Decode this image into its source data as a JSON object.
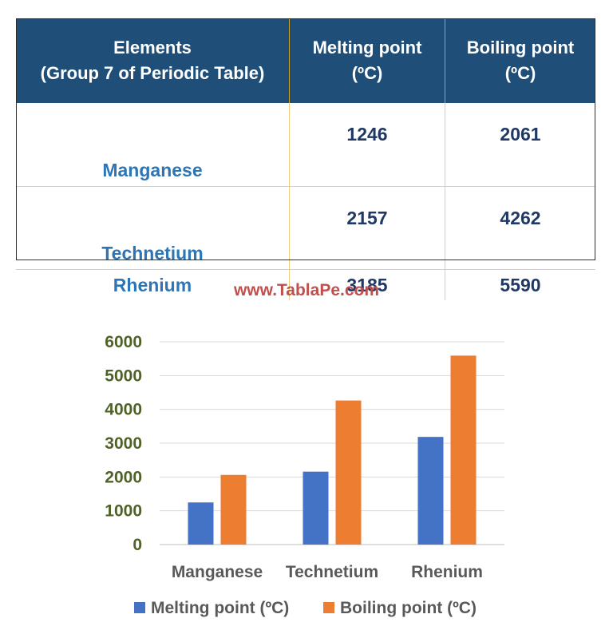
{
  "table": {
    "headers": [
      "Elements\n(Group 7 of Periodic Table)",
      "Melting point\n(ºC)",
      "Boiling point\n(ºC)"
    ],
    "rows": [
      {
        "element": "Manganese",
        "melting": "1246",
        "boiling": "2061"
      },
      {
        "element": "Technetium",
        "melting": "2157",
        "boiling": "4262"
      },
      {
        "element": "Rhenium",
        "melting": "3185",
        "boiling": "5590"
      }
    ]
  },
  "watermark": "www.TablaPe.com",
  "chart_data": {
    "type": "bar",
    "categories": [
      "Manganese",
      "Technetium",
      "Rhenium"
    ],
    "series": [
      {
        "name": "Melting point (ºC)",
        "values": [
          1246,
          2157,
          3185
        ],
        "color": "#4472c4"
      },
      {
        "name": "Boiling point (ºC)",
        "values": [
          2061,
          4262,
          5590
        ],
        "color": "#ed7d31"
      }
    ],
    "ylim": [
      0,
      6000
    ],
    "yticks": [
      "0",
      "1000",
      "2000",
      "3000",
      "4000",
      "5000",
      "6000"
    ],
    "grid": true,
    "legend": "bottom"
  }
}
